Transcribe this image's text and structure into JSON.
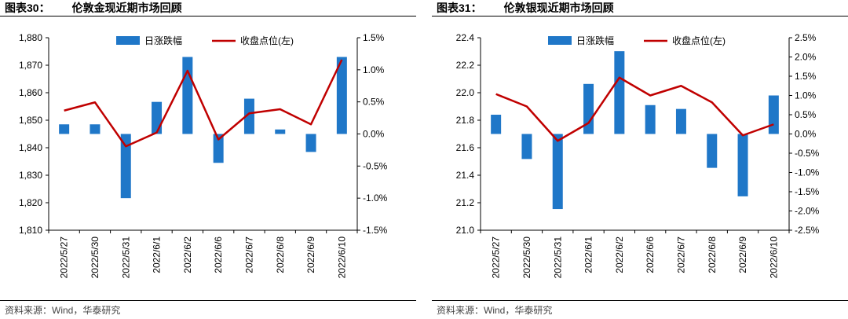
{
  "colors": {
    "bar": "#1f77c8",
    "line": "#c00000",
    "axis": "#000000"
  },
  "panels": [
    {
      "label": "图表30：",
      "name": "伦敦金现近期市场回顾",
      "source": "资料来源：Wind，华泰研究"
    },
    {
      "label": "图表31：",
      "name": "伦敦银现近期市场回顾",
      "source": "资料来源：Wind，华泰研究"
    }
  ],
  "chart_data": [
    {
      "type": "bar",
      "categories": [
        "2022/5/27",
        "2022/5/30",
        "2022/5/31",
        "2022/6/1",
        "2022/6/2",
        "2022/6/6",
        "2022/6/7",
        "2022/6/8",
        "2022/6/9",
        "2022/6/10"
      ],
      "series": [
        {
          "name": "日涨跌幅",
          "type": "bar",
          "axis": "right",
          "values": [
            0.15,
            0.15,
            -1.0,
            0.5,
            1.2,
            -0.45,
            0.55,
            0.07,
            -0.28,
            1.2
          ]
        },
        {
          "name": "收盘点位(左)",
          "type": "line",
          "axis": "left",
          "values": [
            1853.5,
            1856.5,
            1840.5,
            1845.5,
            1868.0,
            1843.0,
            1852.5,
            1854.0,
            1848.5,
            1872.0
          ]
        }
      ],
      "left_axis": {
        "ylim": [
          1810,
          1880
        ],
        "ticks": [
          "1,810",
          "1,820",
          "1,830",
          "1,840",
          "1,850",
          "1,860",
          "1,870",
          "1,880"
        ],
        "tick_values": [
          1810,
          1820,
          1830,
          1840,
          1850,
          1860,
          1870,
          1880
        ]
      },
      "right_axis": {
        "ylim": [
          -1.5,
          1.5
        ],
        "ticks": [
          "-1.5%",
          "-1.0%",
          "-0.5%",
          "0.0%",
          "0.5%",
          "1.0%",
          "1.5%"
        ],
        "tick_values": [
          -1.5,
          -1.0,
          -0.5,
          0.0,
          0.5,
          1.0,
          1.5
        ]
      },
      "legend": "top-center"
    },
    {
      "type": "bar",
      "categories": [
        "2022/5/27",
        "2022/5/30",
        "2022/5/31",
        "2022/6/1",
        "2022/6/2",
        "2022/6/6",
        "2022/6/7",
        "2022/6/8",
        "2022/6/9",
        "2022/6/10"
      ],
      "series": [
        {
          "name": "日涨跌幅",
          "type": "bar",
          "axis": "right",
          "values": [
            0.5,
            -0.65,
            -1.95,
            1.3,
            2.15,
            0.75,
            0.65,
            -0.88,
            -1.62,
            1.0
          ]
        },
        {
          "name": "收盘点位(左)",
          "type": "line",
          "axis": "left",
          "values": [
            21.99,
            21.9,
            21.65,
            21.78,
            22.11,
            21.98,
            22.05,
            21.93,
            21.69,
            21.77
          ]
        }
      ],
      "left_axis": {
        "ylim": [
          21.0,
          22.4
        ],
        "ticks": [
          "21.0",
          "21.2",
          "21.4",
          "21.6",
          "21.8",
          "22.0",
          "22.2",
          "22.4"
        ],
        "tick_values": [
          21.0,
          21.2,
          21.4,
          21.6,
          21.8,
          22.0,
          22.2,
          22.4
        ]
      },
      "right_axis": {
        "ylim": [
          -2.5,
          2.5
        ],
        "ticks": [
          "-2.5%",
          "-2.0%",
          "-1.5%",
          "-1.0%",
          "-0.5%",
          "0.0%",
          "0.5%",
          "1.0%",
          "1.5%",
          "2.0%",
          "2.5%"
        ],
        "tick_values": [
          -2.5,
          -2.0,
          -1.5,
          -1.0,
          -0.5,
          0.0,
          0.5,
          1.0,
          1.5,
          2.0,
          2.5
        ]
      },
      "legend": "top-center"
    }
  ]
}
